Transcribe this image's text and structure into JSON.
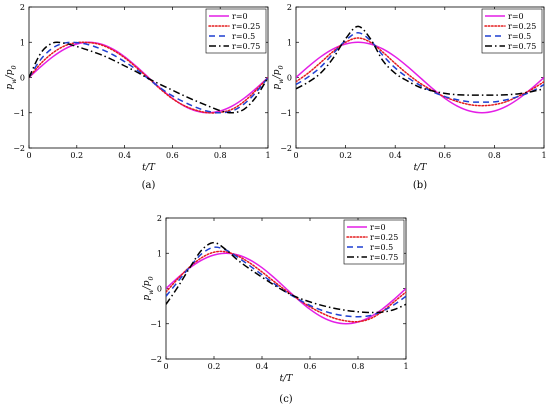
{
  "chart_data": [
    {
      "type": "line",
      "caption": "(a)",
      "xlabel": "t/T",
      "ylabel": "p_w/p_0",
      "xlim": [
        0,
        1
      ],
      "ylim": [
        -2,
        2
      ],
      "xticks": [
        "0",
        "0.2",
        "0.4",
        "0.6",
        "0.8",
        "1"
      ],
      "yticks": [
        "-2",
        "-1",
        "0",
        "1",
        "2"
      ],
      "legend_position": "top-right",
      "x": [
        0,
        0.05,
        0.1,
        0.15,
        0.2,
        0.25,
        0.3,
        0.35,
        0.4,
        0.45,
        0.5,
        0.55,
        0.6,
        0.65,
        0.7,
        0.75,
        0.8,
        0.85,
        0.9,
        0.95,
        1
      ],
      "series": [
        {
          "name": "r=0",
          "color": "#e41ee6",
          "dash": "solid",
          "values": [
            0,
            0.31,
            0.59,
            0.81,
            0.95,
            1.0,
            0.95,
            0.81,
            0.59,
            0.31,
            0,
            -0.31,
            -0.59,
            -0.81,
            -0.95,
            -1.0,
            -0.95,
            -0.81,
            -0.59,
            -0.31,
            0
          ]
        },
        {
          "name": "r=0.25",
          "color": "#e41a1c",
          "dash": "dotted",
          "values": [
            0,
            0.4,
            0.7,
            0.9,
            0.99,
            0.99,
            0.93,
            0.78,
            0.56,
            0.28,
            -0.02,
            -0.33,
            -0.6,
            -0.8,
            -0.93,
            -1.0,
            -0.99,
            -0.9,
            -0.68,
            -0.36,
            0
          ]
        },
        {
          "name": "r=0.5",
          "color": "#1f3fd1",
          "dash": "dashed",
          "values": [
            0,
            0.52,
            0.84,
            0.98,
            0.99,
            0.93,
            0.81,
            0.65,
            0.45,
            0.22,
            -0.04,
            -0.3,
            -0.52,
            -0.7,
            -0.85,
            -0.96,
            -1.0,
            -0.95,
            -0.75,
            -0.42,
            0
          ]
        },
        {
          "name": "r=0.75",
          "color": "#000000",
          "dash": "dashdot",
          "values": [
            0,
            0.7,
            0.98,
            0.97,
            0.88,
            0.77,
            0.65,
            0.5,
            0.33,
            0.16,
            -0.03,
            -0.2,
            -0.36,
            -0.52,
            -0.67,
            -0.81,
            -0.94,
            -1.0,
            -0.9,
            -0.55,
            0
          ]
        }
      ]
    },
    {
      "type": "line",
      "caption": "(b)",
      "xlabel": "t/T",
      "ylabel": "p_w/p_0",
      "xlim": [
        0,
        1
      ],
      "ylim": [
        -2,
        2
      ],
      "xticks": [
        "0",
        "0.2",
        "0.4",
        "0.6",
        "0.8",
        "1"
      ],
      "yticks": [
        "-2",
        "-1",
        "0",
        "1",
        "2"
      ],
      "legend_position": "top-right",
      "x": [
        0,
        0.05,
        0.1,
        0.15,
        0.2,
        0.25,
        0.3,
        0.35,
        0.4,
        0.45,
        0.5,
        0.55,
        0.6,
        0.65,
        0.7,
        0.75,
        0.8,
        0.85,
        0.9,
        0.95,
        1
      ],
      "series": [
        {
          "name": "r=0",
          "color": "#e41ee6",
          "dash": "solid",
          "values": [
            0,
            0.31,
            0.59,
            0.81,
            0.95,
            1.0,
            0.95,
            0.81,
            0.59,
            0.31,
            0,
            -0.31,
            -0.59,
            -0.81,
            -0.95,
            -1.0,
            -0.95,
            -0.81,
            -0.59,
            -0.31,
            0
          ]
        },
        {
          "name": "r=0.25",
          "color": "#e41a1c",
          "dash": "dotted",
          "values": [
            -0.12,
            0.13,
            0.43,
            0.74,
            1.0,
            1.12,
            1.0,
            0.72,
            0.4,
            0.1,
            -0.16,
            -0.37,
            -0.55,
            -0.68,
            -0.77,
            -0.8,
            -0.77,
            -0.68,
            -0.52,
            -0.34,
            -0.12
          ]
        },
        {
          "name": "r=0.5",
          "color": "#1f3fd1",
          "dash": "dashed",
          "values": [
            -0.2,
            0.02,
            0.3,
            0.68,
            1.05,
            1.27,
            1.05,
            0.63,
            0.27,
            0.0,
            -0.22,
            -0.4,
            -0.54,
            -0.63,
            -0.69,
            -0.7,
            -0.69,
            -0.63,
            -0.53,
            -0.4,
            -0.2
          ]
        },
        {
          "name": "r=0.75",
          "color": "#000000",
          "dash": "dashdot",
          "values": [
            -0.32,
            -0.13,
            0.13,
            0.55,
            1.1,
            1.45,
            1.1,
            0.48,
            0.12,
            -0.1,
            -0.28,
            -0.38,
            -0.45,
            -0.49,
            -0.5,
            -0.5,
            -0.5,
            -0.49,
            -0.46,
            -0.4,
            -0.32
          ]
        }
      ]
    },
    {
      "type": "line",
      "caption": "(c)",
      "xlabel": "t/T",
      "ylabel": "p_w/p_0",
      "xlim": [
        0,
        1
      ],
      "ylim": [
        -2,
        2
      ],
      "xticks": [
        "0",
        "0.2",
        "0.4",
        "0.6",
        "0.8",
        "1"
      ],
      "yticks": [
        "-2",
        "-1",
        "0",
        "1",
        "2"
      ],
      "legend_position": "top-right",
      "x": [
        0,
        0.05,
        0.1,
        0.15,
        0.2,
        0.25,
        0.3,
        0.35,
        0.4,
        0.45,
        0.5,
        0.55,
        0.6,
        0.65,
        0.7,
        0.75,
        0.8,
        0.85,
        0.9,
        0.95,
        1
      ],
      "series": [
        {
          "name": "r=0",
          "color": "#e41ee6",
          "dash": "solid",
          "values": [
            0,
            0.31,
            0.59,
            0.81,
            0.95,
            1.0,
            0.95,
            0.81,
            0.59,
            0.31,
            0,
            -0.31,
            -0.59,
            -0.81,
            -0.95,
            -1.0,
            -0.95,
            -0.81,
            -0.59,
            -0.31,
            0
          ]
        },
        {
          "name": "r=0.25",
          "color": "#e41a1c",
          "dash": "dotted",
          "values": [
            -0.1,
            0.28,
            0.62,
            0.88,
            1.03,
            1.04,
            0.92,
            0.72,
            0.47,
            0.2,
            -0.06,
            -0.3,
            -0.52,
            -0.7,
            -0.84,
            -0.92,
            -0.94,
            -0.86,
            -0.66,
            -0.38,
            -0.1
          ]
        },
        {
          "name": "r=0.5",
          "color": "#1f3fd1",
          "dash": "dashed",
          "values": [
            -0.22,
            0.2,
            0.62,
            0.99,
            1.17,
            1.09,
            0.88,
            0.64,
            0.39,
            0.14,
            -0.1,
            -0.3,
            -0.48,
            -0.62,
            -0.72,
            -0.78,
            -0.8,
            -0.77,
            -0.65,
            -0.46,
            -0.22
          ]
        },
        {
          "name": "r=0.75",
          "color": "#000000",
          "dash": "dashdot",
          "values": [
            -0.45,
            0.05,
            0.6,
            1.1,
            1.3,
            1.1,
            0.8,
            0.55,
            0.32,
            0.1,
            -0.1,
            -0.26,
            -0.38,
            -0.48,
            -0.56,
            -0.62,
            -0.66,
            -0.68,
            -0.67,
            -0.6,
            -0.45
          ]
        }
      ]
    }
  ]
}
